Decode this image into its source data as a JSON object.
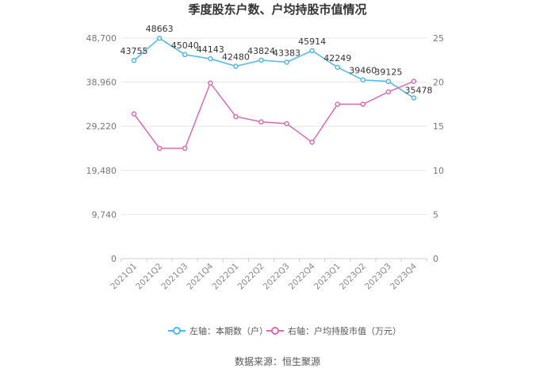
{
  "chart_data": {
    "type": "line",
    "title": "季度股东户数、户均持股市值情况",
    "categories": [
      "2021Q1",
      "2021Q2",
      "2021Q3",
      "2021Q4",
      "2022Q1",
      "2022Q2",
      "2022Q3",
      "2022Q4",
      "2023Q1",
      "2023Q2",
      "2023Q3",
      "2023Q4"
    ],
    "left_axis": {
      "min": 0,
      "max": 48700,
      "ticks": [
        "0",
        "9,740",
        "19,480",
        "29,220",
        "38,960",
        "48,700"
      ],
      "tick_values": [
        0,
        9740,
        19480,
        29220,
        38960,
        48700
      ]
    },
    "right_axis": {
      "min": 0,
      "max": 25,
      "ticks": [
        "0",
        "5",
        "10",
        "15",
        "20",
        "25"
      ],
      "tick_values": [
        0,
        5,
        10,
        15,
        20,
        25
      ]
    },
    "series": [
      {
        "name": "左轴：本期数（户）",
        "axis": "left",
        "color": "#4db8e8",
        "values": [
          43755,
          48663,
          45040,
          44143,
          42480,
          43824,
          43383,
          45914,
          42249,
          39460,
          39125,
          35478
        ],
        "labels": [
          "43755",
          "48663",
          "45040",
          "44143",
          "42480",
          "43824",
          "43383",
          "45914",
          "42249",
          "39460",
          "39125",
          "35478"
        ]
      },
      {
        "name": "右轴：户均持股市值（万元）",
        "axis": "right",
        "color": "#d96bb5",
        "values": [
          16.4,
          12.5,
          12.5,
          19.9,
          16.1,
          15.5,
          15.3,
          13.2,
          17.5,
          17.5,
          18.9,
          20.1
        ]
      }
    ],
    "grid": true,
    "legend_position": "bottom"
  },
  "source_text": "数据来源：恒生聚源"
}
